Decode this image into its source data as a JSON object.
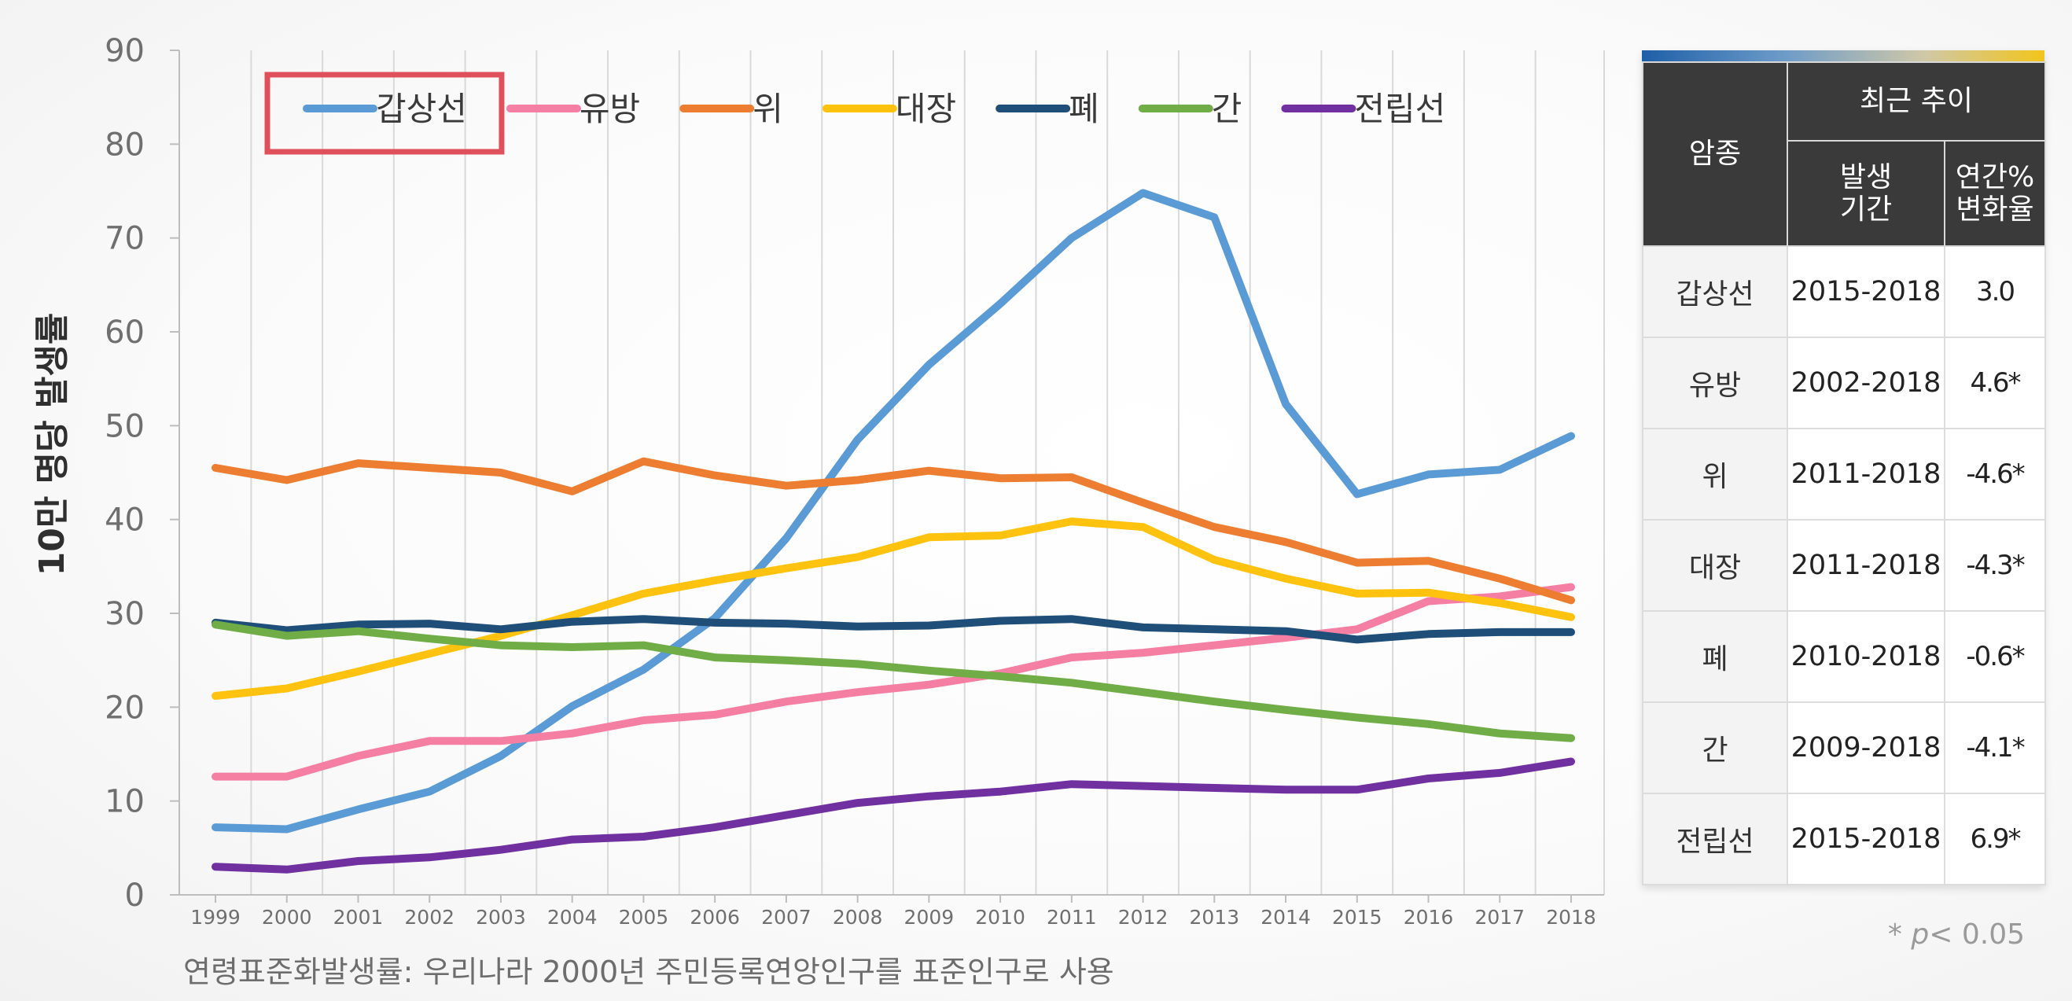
{
  "chart_data": {
    "type": "line",
    "x": [
      1999,
      2000,
      2001,
      2002,
      2003,
      2004,
      2005,
      2006,
      2007,
      2008,
      2009,
      2010,
      2011,
      2012,
      2013,
      2014,
      2015,
      2016,
      2017,
      2018
    ],
    "ylabel": "10만 명당 발생률",
    "ylim": [
      0,
      90
    ],
    "yticks": [
      0,
      10,
      20,
      30,
      40,
      50,
      60,
      70,
      80,
      90
    ],
    "grid": "vertical",
    "legend_position": "top",
    "highlighted_legend": "갑상선",
    "series": [
      {
        "name": "갑상선",
        "color": "#5b9bd5",
        "values": [
          7.2,
          7.0,
          9.1,
          11.0,
          14.8,
          20.1,
          24.0,
          29.5,
          38.0,
          48.5,
          56.5,
          63.0,
          70.0,
          74.8,
          72.2,
          52.3,
          42.7,
          44.8,
          45.3,
          48.9
        ]
      },
      {
        "name": "유방",
        "color": "#f57ea3",
        "values": [
          12.6,
          12.6,
          14.8,
          16.4,
          16.4,
          17.2,
          18.6,
          19.2,
          20.6,
          21.6,
          22.4,
          23.6,
          25.3,
          25.8,
          26.6,
          27.4,
          28.3,
          31.3,
          31.8,
          32.8
        ]
      },
      {
        "name": "위",
        "color": "#ed7d31",
        "values": [
          45.5,
          44.2,
          46.0,
          45.5,
          45.0,
          43.0,
          46.2,
          44.7,
          43.6,
          44.2,
          45.2,
          44.4,
          44.5,
          41.8,
          39.2,
          37.6,
          35.4,
          35.6,
          33.7,
          31.4
        ]
      },
      {
        "name": "대장",
        "color": "#ffc20e",
        "values": [
          21.2,
          22.0,
          23.8,
          25.7,
          27.6,
          29.8,
          32.1,
          33.5,
          34.8,
          36.0,
          38.1,
          38.3,
          39.8,
          39.2,
          35.7,
          33.7,
          32.1,
          32.2,
          31.1,
          29.6
        ]
      },
      {
        "name": "폐",
        "color": "#1f4e79",
        "values": [
          29.0,
          28.2,
          28.8,
          28.9,
          28.3,
          29.1,
          29.4,
          29.0,
          28.9,
          28.6,
          28.7,
          29.2,
          29.4,
          28.5,
          28.3,
          28.1,
          27.2,
          27.8,
          28.0,
          28.0
        ]
      },
      {
        "name": "간",
        "color": "#70ad47",
        "values": [
          28.8,
          27.6,
          28.1,
          27.3,
          26.6,
          26.4,
          26.6,
          25.3,
          25.0,
          24.6,
          23.9,
          23.3,
          22.6,
          21.6,
          20.6,
          19.7,
          18.9,
          18.2,
          17.2,
          16.7
        ]
      },
      {
        "name": "전립선",
        "color": "#7030a0",
        "values": [
          3.0,
          2.7,
          3.6,
          4.0,
          4.8,
          5.9,
          6.2,
          7.2,
          8.5,
          9.8,
          10.5,
          11.0,
          11.8,
          11.6,
          11.4,
          11.2,
          11.2,
          12.4,
          13.0,
          14.2
        ]
      }
    ]
  },
  "footnote": "연령표준화발생률: 우리나라 2000년 주민등록연앙인구를 표준인구로 사용",
  "pvalue_note": {
    "prefix": "* ",
    "p": "p",
    "rest": "< 0.05"
  },
  "table": {
    "headers": {
      "cancer_type": "암종",
      "recent_trend": "최근 추이",
      "period_line1": "발생",
      "period_line2": "기간",
      "apc_line1": "연간%",
      "apc_line2": "변화율"
    },
    "rows": [
      {
        "type": "갑상선",
        "period": "2015-2018",
        "apc": "3.0"
      },
      {
        "type": "유방",
        "period": "2002-2018",
        "apc": "4.6*"
      },
      {
        "type": "위",
        "period": "2011-2018",
        "apc": "-4.6*"
      },
      {
        "type": "대장",
        "period": "2011-2018",
        "apc": "-4.3*"
      },
      {
        "type": "폐",
        "period": "2010-2018",
        "apc": "-0.6*"
      },
      {
        "type": "간",
        "period": "2009-2018",
        "apc": "-4.1*"
      },
      {
        "type": "전립선",
        "period": "2015-2018",
        "apc": "6.9*"
      }
    ]
  }
}
